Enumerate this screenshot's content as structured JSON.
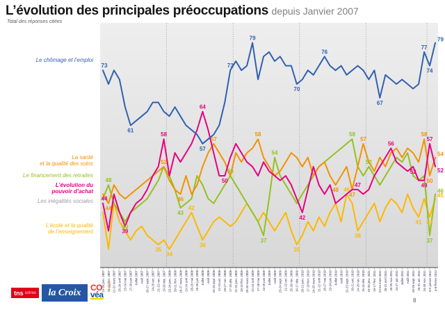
{
  "header": {
    "title": "L’évolution des principales préoccupations",
    "title_suffix": "depuis Janvier 2007",
    "subtitle": "Total des réponses citées"
  },
  "page_number": "8",
  "footer": {
    "tns_label": "tns",
    "tns_sub": "sofres",
    "lacroix_label": "la Croix",
    "covea_top": "CO",
    "covea_bottom": "véa",
    "france_label": "France"
  },
  "chart_data": {
    "type": "line",
    "title": "L’évolution des principales préoccupations depuis Janvier 2007",
    "xlabel": "",
    "ylabel": "",
    "ylim": [
      30,
      82
    ],
    "grid": false,
    "legend_position": "left",
    "categories": [
      "24-25 janv. 2007",
      "21-22 févr. 2007",
      "21-22 mars 2007",
      "25-26 avril 2007",
      "23-24 mai 2007",
      "27-28 juin 2007",
      "Juillet 2007",
      "Août 2007",
      "26-27 sept. 2007",
      "24-25 oct. 2007",
      "21-22 nov. 2007",
      "19-20 déc. 2007",
      "23-24 janv. 2008",
      "20-21 févr. 2008",
      "26-27 mars 2008",
      "23-24 avril 2008",
      "28-29 mai 2008",
      "25-26 juin 2008",
      "Juillet 2008",
      "Août 2008",
      "24-25 sept. 2008",
      "22-23 oct. 2008",
      "26-27 nov. 2008",
      "17-18 déc. 2008",
      "21-22 janv. 2009",
      "18-19 févr. 2009",
      "25-26 mars 2009",
      "22-23 avril 2009",
      "27-28 mai 2009",
      "24-25 juin 2009",
      "Juillet 2009",
      "Août 2009",
      "23-24 sept. 2009",
      "21-22 oct. 2009",
      "25-26 nov. 2009",
      "16-17 déc. 2009",
      "20-21 janv. 2010",
      "17-18 févr. 2010",
      "24-25 mars 2010",
      "21-22 avril 2010",
      "26-27 mai 2010",
      "23-24 juin 2010",
      "Juillet 2010",
      "Août 2010",
      "22-23 sept. 2010",
      "20-21 oct. 2010",
      "24-25 nov. 2010",
      "15-16 déc. 2010",
      "19-20 janv. 2011",
      "16-17 févr. 2011",
      "23-24 mars 2011",
      "20-21 avril 2011",
      "25-26 mai 2011",
      "24-27 juin 2011",
      "Juillet 2011",
      "Août 2011",
      "20-26 sept. 2011",
      "26-31 oct. 2011",
      "24-28 nov. 2011",
      "6-9 janvier 2012",
      "3-6 février 2012"
    ],
    "year_breaks_after_index": [
      11,
      23,
      35,
      47,
      58
    ],
    "series": [
      {
        "name": "Le chômage et l’emploi",
        "legend_lines": [
          "Le chômage et l’emploi"
        ],
        "color": "#3060b0",
        "bold_legend": false,
        "values": [
          73,
          70,
          73,
          71,
          65,
          61,
          62,
          63,
          64,
          66,
          66,
          64,
          63,
          65,
          63,
          61,
          60,
          59,
          57,
          58,
          59,
          61,
          66,
          73,
          75,
          73,
          74,
          79,
          71,
          76,
          77,
          75,
          76,
          74,
          74,
          70,
          71,
          73,
          72,
          74,
          76,
          74,
          73,
          74,
          72,
          73,
          74,
          73,
          71,
          73,
          67,
          72,
          71,
          70,
          71,
          70,
          69,
          70,
          77,
          74,
          79
        ],
        "labels": [
          {
            "i": 0,
            "v": 73,
            "pos": "above"
          },
          {
            "i": 5,
            "v": 61,
            "pos": "below"
          },
          {
            "i": 18,
            "v": 57,
            "pos": "below"
          },
          {
            "i": 23,
            "v": 73,
            "pos": "above"
          },
          {
            "i": 27,
            "v": 79,
            "pos": "above"
          },
          {
            "i": 35,
            "v": 70,
            "pos": "below"
          },
          {
            "i": 40,
            "v": 76,
            "pos": "above"
          },
          {
            "i": 50,
            "v": 67,
            "pos": "below"
          },
          {
            "i": 58,
            "v": 77,
            "pos": "above"
          },
          {
            "i": 59,
            "v": 74,
            "pos": "below"
          },
          {
            "i": 60,
            "v": 79,
            "pos": "above"
          }
        ]
      },
      {
        "name": "La santé et la qualité des soins",
        "legend_lines": [
          "La santé",
          "et la qualité des soins"
        ],
        "color": "#f39200",
        "bold_legend": false,
        "values": [
          46,
          44,
          48,
          46,
          45,
          46,
          47,
          48,
          49,
          50,
          51,
          52,
          49,
          47,
          46,
          50,
          46,
          48,
          52,
          55,
          57,
          55,
          53,
          50,
          55,
          53,
          55,
          56,
          58,
          54,
          52,
          50,
          51,
          53,
          55,
          54,
          52,
          54,
          50,
          52,
          53,
          50,
          48,
          50,
          52,
          47,
          52,
          57,
          53,
          51,
          54,
          52,
          55,
          56,
          54,
          56,
          55,
          53,
          58,
          50,
          54
        ],
        "labels": [
          {
            "i": 1,
            "v": 44,
            "pos": "below"
          },
          {
            "i": 11,
            "v": 52,
            "pos": "above"
          },
          {
            "i": 14,
            "v": 46,
            "pos": "below"
          },
          {
            "i": 20,
            "v": 57,
            "pos": "above"
          },
          {
            "i": 28,
            "v": 58,
            "pos": "above"
          },
          {
            "i": 42,
            "v": 48,
            "pos": "below"
          },
          {
            "i": 45,
            "v": 47,
            "pos": "below"
          },
          {
            "i": 47,
            "v": 57,
            "pos": "above"
          },
          {
            "i": 58,
            "v": 58,
            "pos": "above"
          },
          {
            "i": 59,
            "v": 50,
            "pos": "below"
          },
          {
            "i": 60,
            "v": 54,
            "pos": "above"
          }
        ]
      },
      {
        "name": "Le financement des retraites",
        "legend_lines": [
          "Le financement des retraites"
        ],
        "color": "#95c11f",
        "bold_legend": false,
        "values": [
          45,
          48,
          44,
          42,
          40,
          42,
          43,
          44,
          45,
          47,
          49,
          52,
          50,
          47,
          43,
          44,
          45,
          50,
          48,
          45,
          44,
          46,
          48,
          50,
          48,
          46,
          44,
          42,
          40,
          37,
          45,
          54,
          50,
          48,
          46,
          44,
          46,
          48,
          50,
          52,
          53,
          54,
          55,
          56,
          57,
          58,
          52,
          50,
          52,
          50,
          48,
          50,
          52,
          54,
          53,
          55,
          50,
          49,
          50,
          37,
          46
        ],
        "labels": [
          {
            "i": 1,
            "v": 48,
            "pos": "above"
          },
          {
            "i": 4,
            "v": 40,
            "pos": "below"
          },
          {
            "i": 14,
            "v": 43,
            "pos": "below"
          },
          {
            "i": 23,
            "v": 50,
            "pos": "above"
          },
          {
            "i": 29,
            "v": 37,
            "pos": "below"
          },
          {
            "i": 31,
            "v": 54,
            "pos": "above"
          },
          {
            "i": 45,
            "v": 58,
            "pos": "above"
          },
          {
            "i": 48,
            "v": 52,
            "pos": "above"
          },
          {
            "i": 59,
            "v": 37,
            "pos": "below"
          },
          {
            "i": 60,
            "v": 46,
            "pos": "above"
          }
        ]
      },
      {
        "name": "L’évolution du pouvoir d’achat",
        "legend_lines": [
          "L’évolution du",
          "pouvoir d’achat"
        ],
        "color": "#e6007e",
        "bold_legend": true,
        "values": [
          44,
          38,
          46,
          42,
          39,
          42,
          44,
          45,
          47,
          50,
          52,
          58,
          50,
          55,
          53,
          55,
          57,
          60,
          64,
          60,
          55,
          50,
          50,
          54,
          57,
          55,
          53,
          52,
          50,
          53,
          51,
          50,
          49,
          50,
          48,
          45,
          42,
          47,
          52,
          48,
          46,
          48,
          44,
          45,
          46,
          47,
          47,
          46,
          47,
          50,
          52,
          54,
          56,
          53,
          52,
          51,
          52,
          49,
          49,
          57,
          52
        ],
        "labels": [
          {
            "i": 0,
            "v": 44,
            "pos": "above"
          },
          {
            "i": 4,
            "v": 39,
            "pos": "below"
          },
          {
            "i": 11,
            "v": 58,
            "pos": "above"
          },
          {
            "i": 18,
            "v": 64,
            "pos": "above"
          },
          {
            "i": 22,
            "v": 50,
            "pos": "below"
          },
          {
            "i": 36,
            "v": 42,
            "pos": "below"
          },
          {
            "i": 46,
            "v": 47,
            "pos": "above"
          },
          {
            "i": 52,
            "v": 56,
            "pos": "above"
          },
          {
            "i": 56,
            "v": 52,
            "pos": "below"
          },
          {
            "i": 58,
            "v": 49,
            "pos": "below"
          },
          {
            "i": 59,
            "v": 57,
            "pos": "above"
          },
          {
            "i": 60,
            "v": 52,
            "pos": "below"
          }
        ]
      },
      {
        "name": "Les inégalités sociales",
        "legend_lines": [
          "Les inégalités sociales"
        ],
        "color": "#9d9d9c",
        "bold_legend": false,
        "values": null,
        "labels": []
      },
      {
        "name": "L’école et la qualité de l’enseignement",
        "legend_lines": [
          "L’école et la qualité",
          "de l’enseignement"
        ],
        "color": "#fbb900",
        "bold_legend": false,
        "values": [
          42,
          34,
          44,
          40,
          38,
          36,
          38,
          39,
          37,
          36,
          35,
          36,
          34,
          36,
          38,
          40,
          42,
          39,
          36,
          38,
          40,
          41,
          40,
          39,
          40,
          42,
          44,
          42,
          40,
          42,
          40,
          38,
          40,
          42,
          38,
          35,
          37,
          40,
          38,
          41,
          39,
          42,
          44,
          40,
          46,
          44,
          38,
          40,
          42,
          44,
          40,
          43,
          45,
          44,
          42,
          46,
          43,
          41,
          45,
          41,
          45
        ],
        "labels": [
          {
            "i": 10,
            "v": 35,
            "pos": "below"
          },
          {
            "i": 12,
            "v": 34,
            "pos": "below"
          },
          {
            "i": 16,
            "v": 42,
            "pos": "above"
          },
          {
            "i": 18,
            "v": 36,
            "pos": "below"
          },
          {
            "i": 35,
            "v": 35,
            "pos": "below"
          },
          {
            "i": 44,
            "v": 46,
            "pos": "above"
          },
          {
            "i": 46,
            "v": 38,
            "pos": "below"
          },
          {
            "i": 57,
            "v": 41,
            "pos": "below"
          },
          {
            "i": 59,
            "v": 41,
            "pos": "below"
          },
          {
            "i": 60,
            "v": 45,
            "pos": "above"
          }
        ]
      }
    ]
  }
}
